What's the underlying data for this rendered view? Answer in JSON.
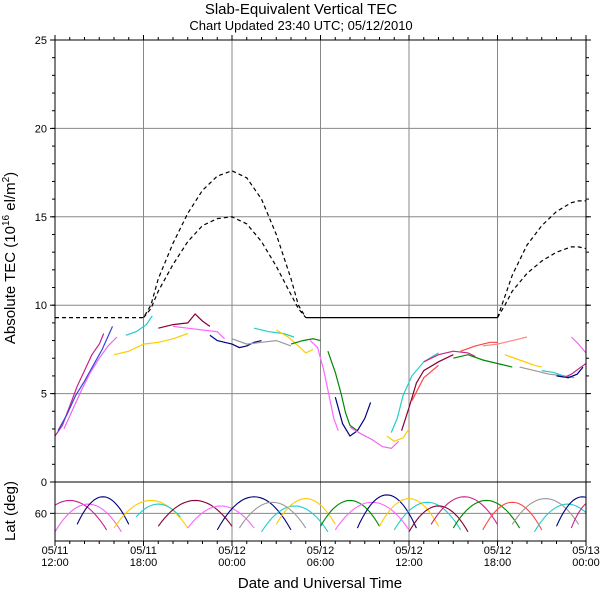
{
  "chart_data": {
    "type": "line",
    "title": "Slab-Equivalent Vertical TEC",
    "subtitle": "Chart Updated 23:40 UTC; 05/12/2010",
    "xlabel": "Date and Universal Time",
    "ylabel": "Absolute TEC (10",
    "ylabel_sup": "16",
    "ylabel_tail": " el/m",
    "ylabel_sup2": "2",
    "ylabel_end": ")",
    "ylabel2": "Lat (deg)",
    "x_unit": "hours since 05/11 12:00 UTC",
    "xlim": [
      0,
      36
    ],
    "ylim": [
      0,
      25
    ],
    "lat_ylim": [
      75,
      43
    ],
    "x_ticks": [
      {
        "x": 0,
        "line1": "05/11",
        "line2": "12:00"
      },
      {
        "x": 6,
        "line1": "05/11",
        "line2": "18:00"
      },
      {
        "x": 12,
        "line1": "05/12",
        "line2": "00:00"
      },
      {
        "x": 18,
        "line1": "05/12",
        "line2": "06:00"
      },
      {
        "x": 24,
        "line1": "05/12",
        "line2": "12:00"
      },
      {
        "x": 30,
        "line1": "05/12",
        "line2": "18:00"
      },
      {
        "x": 36,
        "line1": "05/13",
        "line2": "00:00"
      }
    ],
    "y_ticks": [
      0,
      5,
      10,
      15,
      20,
      25
    ],
    "y_tick_labels": [
      "0",
      "5",
      "10",
      "15",
      "20",
      "25"
    ],
    "lat_ticks": [
      60
    ],
    "lat_tick_labels": [
      "60"
    ],
    "grid": true,
    "series": [
      {
        "name": "",
        "style": "dashed",
        "color": "#000000",
        "x": [
          0,
          6,
          6.5,
          7,
          8,
          9,
          10,
          11,
          12,
          13,
          14,
          15,
          16,
          16.5,
          17
        ],
        "y": [
          9.3,
          9.3,
          10,
          11.5,
          13.5,
          15.2,
          16.5,
          17.3,
          17.6,
          17.2,
          16,
          14,
          11.5,
          10,
          9.3
        ]
      },
      {
        "name": "",
        "style": "dashed",
        "color": "#000000",
        "x": [
          6,
          6.5,
          7,
          8,
          9,
          10,
          11,
          12,
          13,
          14,
          15,
          16,
          16.5,
          17
        ],
        "y": [
          9.3,
          9.8,
          10.8,
          12.3,
          13.6,
          14.5,
          14.9,
          15.0,
          14.6,
          13.6,
          12.2,
          10.6,
          9.8,
          9.3
        ]
      },
      {
        "name": "",
        "style": "solid",
        "color": "#000000",
        "x": [
          17,
          30
        ],
        "y": [
          9.3,
          9.3
        ]
      },
      {
        "name": "",
        "style": "dashed",
        "color": "#000000",
        "x": [
          30,
          30.5,
          31,
          32,
          33,
          34,
          35,
          35.5,
          36
        ],
        "y": [
          9.3,
          10.5,
          11.7,
          13.4,
          14.5,
          15.3,
          15.8,
          15.9,
          15.9
        ]
      },
      {
        "name": "",
        "style": "dashed",
        "color": "#000000",
        "x": [
          30,
          30.5,
          31,
          32,
          33,
          34,
          35,
          35.5,
          36
        ],
        "y": [
          9.3,
          10,
          10.8,
          11.8,
          12.5,
          13.0,
          13.3,
          13.3,
          13.2
        ]
      },
      {
        "name": "",
        "style": "solid",
        "color": "#cc2288",
        "x": [
          0,
          0.5,
          1,
          1.5,
          2,
          2.5,
          3,
          3.3
        ],
        "y": [
          2.6,
          3.2,
          4.3,
          5.4,
          6.3,
          7.2,
          7.8,
          8.4
        ]
      },
      {
        "name": "",
        "style": "solid",
        "color": "#3344dd",
        "x": [
          0.2,
          0.8,
          1.4,
          2,
          2.6,
          3.2,
          3.9
        ],
        "y": [
          2.9,
          3.8,
          4.9,
          5.7,
          6.6,
          7.5,
          8.8
        ]
      },
      {
        "name": "",
        "style": "solid",
        "color": "#ee66ee",
        "x": [
          0.6,
          1.2,
          1.8,
          2.4,
          3,
          3.6,
          4.2
        ],
        "y": [
          3.0,
          4.1,
          5.2,
          6.2,
          7.0,
          7.7,
          8.2
        ]
      },
      {
        "name": "",
        "style": "solid",
        "color": "#ffcc00",
        "x": [
          4,
          5,
          6,
          7,
          8,
          9
        ],
        "y": [
          7.2,
          7.4,
          7.8,
          7.9,
          8.1,
          8.4
        ]
      },
      {
        "name": "",
        "style": "solid",
        "color": "#22cccc",
        "x": [
          4.8,
          5.5,
          6.2,
          6.6
        ],
        "y": [
          8.3,
          8.5,
          8.9,
          9.4
        ]
      },
      {
        "name": "",
        "style": "solid",
        "color": "#880033",
        "x": [
          7,
          8,
          9,
          9.5,
          10,
          10.5
        ],
        "y": [
          8.7,
          8.9,
          9.0,
          9.5,
          9.1,
          8.8
        ]
      },
      {
        "name": "",
        "style": "solid",
        "color": "#ff66ff",
        "x": [
          8,
          9,
          10,
          11,
          11.5
        ],
        "y": [
          8.8,
          8.7,
          8.6,
          8.5,
          8.1
        ]
      },
      {
        "name": "",
        "style": "solid",
        "color": "#000080",
        "x": [
          10.5,
          11,
          11.5,
          12,
          12.5,
          13,
          13.5,
          14
        ],
        "y": [
          8.3,
          8.0,
          7.9,
          7.8,
          7.6,
          7.7,
          7.9,
          8.0
        ]
      },
      {
        "name": "",
        "style": "solid",
        "color": "#999999",
        "x": [
          12,
          13,
          14,
          15,
          16
        ],
        "y": [
          8.1,
          7.8,
          7.9,
          8.0,
          7.7
        ]
      },
      {
        "name": "",
        "style": "solid",
        "color": "#22cccc",
        "x": [
          13.5,
          14.5,
          15.5,
          16.2
        ],
        "y": [
          8.7,
          8.5,
          8.4,
          8.2
        ]
      },
      {
        "name": "",
        "style": "solid",
        "color": "#ffcc00",
        "x": [
          15,
          15.8,
          16.5,
          17,
          17.5
        ],
        "y": [
          8.6,
          8.2,
          7.7,
          7.3,
          7.5
        ]
      },
      {
        "name": "",
        "style": "solid",
        "color": "#008800",
        "x": [
          16,
          16.8,
          17.5,
          18
        ],
        "y": [
          7.8,
          8.0,
          8.1,
          8.0
        ]
      },
      {
        "name": "",
        "style": "solid",
        "color": "#ff66ff",
        "x": [
          17.3,
          17.8,
          18.2,
          18.6,
          18.9,
          19.2
        ],
        "y": [
          8.0,
          7.6,
          6.4,
          4.8,
          3.6,
          2.9
        ]
      },
      {
        "name": "",
        "style": "solid",
        "color": "#008800",
        "x": [
          18.5,
          19,
          19.4,
          19.7,
          20,
          20.5
        ],
        "y": [
          7.4,
          6.2,
          5.0,
          3.9,
          3.2,
          2.9
        ]
      },
      {
        "name": "",
        "style": "solid",
        "color": "#000080",
        "x": [
          19,
          19.5,
          20,
          20.5,
          21,
          21.4
        ],
        "y": [
          4.8,
          3.3,
          2.6,
          2.9,
          3.6,
          4.5
        ]
      },
      {
        "name": "",
        "style": "solid",
        "color": "#ee66ee",
        "x": [
          20,
          20.8,
          21.5,
          22.2,
          22.8,
          23.3
        ],
        "y": [
          3.1,
          2.7,
          2.4,
          2.0,
          1.9,
          2.3
        ]
      },
      {
        "name": "",
        "style": "solid",
        "color": "#ffcc00",
        "x": [
          22.5,
          23,
          23.6,
          24
        ],
        "y": [
          2.6,
          2.3,
          2.5,
          3.0
        ]
      },
      {
        "name": "",
        "style": "solid",
        "color": "#22cccc",
        "x": [
          22.8,
          23.2,
          23.6,
          24.2,
          25,
          26
        ],
        "y": [
          2.8,
          3.6,
          4.9,
          6.0,
          6.8,
          7.3
        ]
      },
      {
        "name": "",
        "style": "solid",
        "color": "#880033",
        "x": [
          23.5,
          24,
          24.5,
          25,
          26,
          27
        ],
        "y": [
          2.9,
          4.2,
          5.6,
          6.3,
          6.8,
          7.2
        ]
      },
      {
        "name": "",
        "style": "solid",
        "color": "#ff4444",
        "x": [
          24.2,
          25,
          26
        ],
        "y": [
          4.6,
          5.9,
          6.6
        ]
      },
      {
        "name": "",
        "style": "solid",
        "color": "#cc2288",
        "x": [
          25,
          26,
          27,
          28,
          28.5
        ],
        "y": [
          6.8,
          7.2,
          7.4,
          7.3,
          7.1
        ]
      },
      {
        "name": "",
        "style": "solid",
        "color": "#008800",
        "x": [
          27,
          28,
          29,
          30,
          31
        ],
        "y": [
          7.0,
          7.2,
          6.9,
          6.7,
          6.5
        ]
      },
      {
        "name": "",
        "style": "solid",
        "color": "#ff4444",
        "x": [
          27.5,
          28.5,
          29.5,
          30
        ],
        "y": [
          7.4,
          7.7,
          7.9,
          7.9
        ]
      },
      {
        "name": "",
        "style": "solid",
        "color": "#ff8888",
        "x": [
          29,
          30,
          31,
          32
        ],
        "y": [
          7.7,
          7.8,
          8.0,
          8.2
        ]
      },
      {
        "name": "",
        "style": "solid",
        "color": "#ffcc00",
        "x": [
          30.5,
          31.5,
          32.5,
          33
        ],
        "y": [
          7.2,
          6.9,
          6.6,
          6.5
        ]
      },
      {
        "name": "",
        "style": "solid",
        "color": "#999999",
        "x": [
          31.5,
          32.5,
          33.5,
          34.5
        ],
        "y": [
          6.5,
          6.3,
          6.1,
          6.0
        ]
      },
      {
        "name": "",
        "style": "solid",
        "color": "#22cccc",
        "x": [
          33,
          33.8,
          34.5,
          35.2
        ],
        "y": [
          6.3,
          6.2,
          6.0,
          5.9
        ]
      },
      {
        "name": "",
        "style": "solid",
        "color": "#000080",
        "x": [
          34,
          34.8,
          35.4,
          35.8
        ],
        "y": [
          6.0,
          5.9,
          6.1,
          6.5
        ]
      },
      {
        "name": "",
        "style": "solid",
        "color": "#cc2288",
        "x": [
          34.5,
          35,
          35.5,
          36
        ],
        "y": [
          5.9,
          6.1,
          6.4,
          6.7
        ]
      },
      {
        "name": "",
        "style": "solid",
        "color": "#ee66ee",
        "x": [
          35,
          35.5,
          36
        ],
        "y": [
          8.2,
          7.8,
          7.3
        ]
      }
    ],
    "lat_tracks": [
      {
        "color": "#cc2288",
        "x0": -1.5,
        "x1": 3.5,
        "peak": 53,
        "edge": 69
      },
      {
        "color": "#ee66ee",
        "x0": 0,
        "x1": 4.5,
        "peak": 55,
        "edge": 70
      },
      {
        "color": "#000080",
        "x0": 1.5,
        "x1": 5,
        "peak": 51,
        "edge": 66
      },
      {
        "color": "#ffcc00",
        "x0": 4,
        "x1": 9,
        "peak": 53,
        "edge": 68
      },
      {
        "color": "#22cccc",
        "x0": 5.5,
        "x1": 8.5,
        "peak": 55,
        "edge": 62
      },
      {
        "color": "#880033",
        "x0": 7,
        "x1": 12,
        "peak": 53,
        "edge": 67
      },
      {
        "color": "#ff66ff",
        "x0": 9,
        "x1": 13.5,
        "peak": 56,
        "edge": 68
      },
      {
        "color": "#000080",
        "x0": 11,
        "x1": 16,
        "peak": 51,
        "edge": 69
      },
      {
        "color": "#999999",
        "x0": 12.5,
        "x1": 17,
        "peak": 54,
        "edge": 68
      },
      {
        "color": "#22cccc",
        "x0": 14,
        "x1": 18.5,
        "peak": 56,
        "edge": 70
      },
      {
        "color": "#ffcc00",
        "x0": 15,
        "x1": 19,
        "peak": 52,
        "edge": 66
      },
      {
        "color": "#008800",
        "x0": 18,
        "x1": 22,
        "peak": 53,
        "edge": 67
      },
      {
        "color": "#ff66ff",
        "x0": 19,
        "x1": 24,
        "peak": 54,
        "edge": 69
      },
      {
        "color": "#000080",
        "x0": 20.5,
        "x1": 24.5,
        "peak": 50,
        "edge": 68
      },
      {
        "color": "#ffcc00",
        "x0": 22,
        "x1": 26,
        "peak": 52,
        "edge": 67
      },
      {
        "color": "#22cccc",
        "x0": 23,
        "x1": 27.5,
        "peak": 54,
        "edge": 69
      },
      {
        "color": "#880033",
        "x0": 24,
        "x1": 28,
        "peak": 56,
        "edge": 70
      },
      {
        "color": "#cc2288",
        "x0": 25.5,
        "x1": 30,
        "peak": 51,
        "edge": 66
      },
      {
        "color": "#008800",
        "x0": 27,
        "x1": 31.5,
        "peak": 53,
        "edge": 68
      },
      {
        "color": "#ff4444",
        "x0": 29,
        "x1": 33,
        "peak": 54,
        "edge": 69
      },
      {
        "color": "#999999",
        "x0": 31,
        "x1": 35.5,
        "peak": 52,
        "edge": 66
      },
      {
        "color": "#22cccc",
        "x0": 32.5,
        "x1": 37,
        "peak": 55,
        "edge": 70
      },
      {
        "color": "#000080",
        "x0": 34,
        "x1": 37.5,
        "peak": 51,
        "edge": 67
      },
      {
        "color": "#cc2288",
        "x0": 35,
        "x1": 38,
        "peak": 53,
        "edge": 68
      }
    ]
  }
}
